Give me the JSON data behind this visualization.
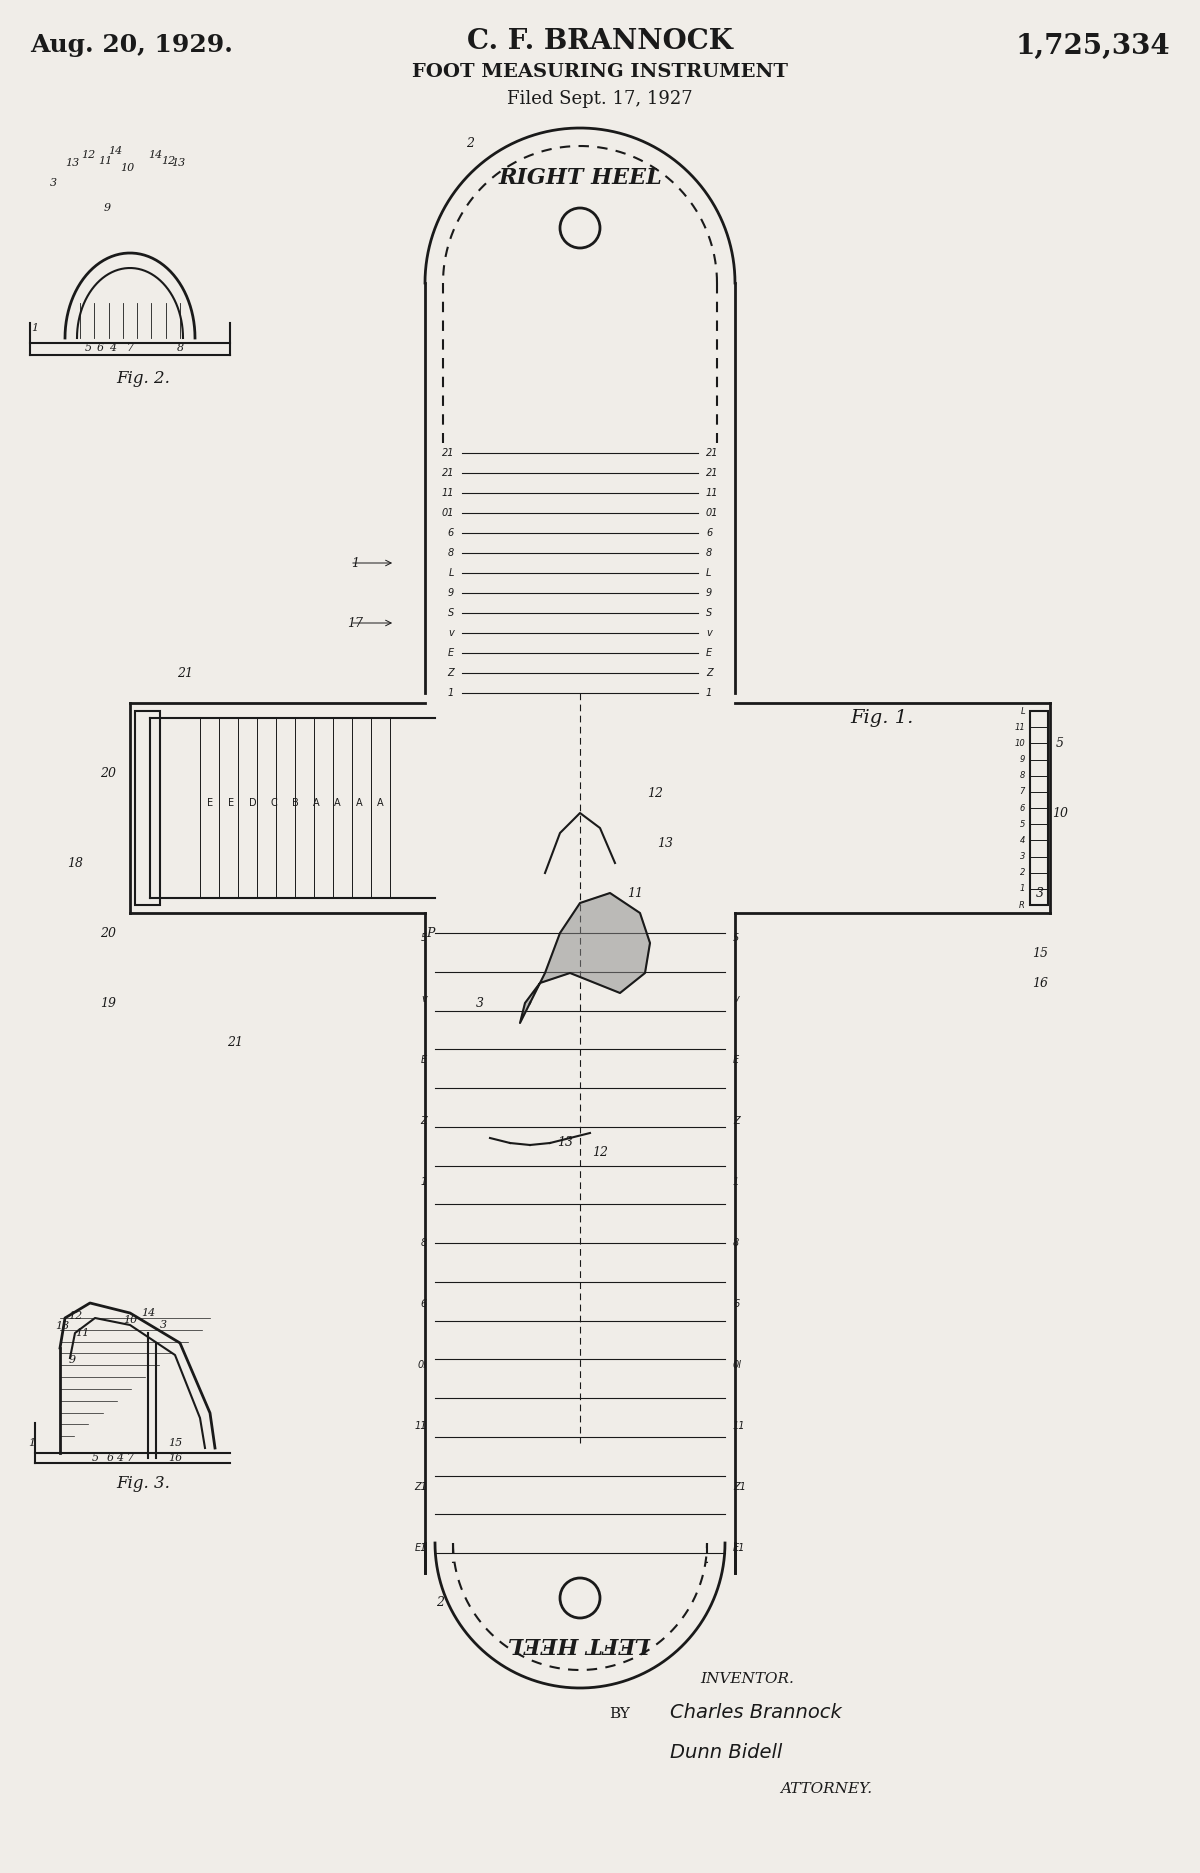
{
  "bg_color": "#f0ede8",
  "title_line1": "C. F. BRANNOCK",
  "title_line2": "FOOT MEASURING INSTRUMENT",
  "title_line3": "Filed Sept. 17, 1927",
  "date": "Aug. 20, 1929.",
  "patent_no": "1,725,334",
  "inventor_label": "INVENTOR.",
  "inventor_sig": "Charles Brannock",
  "by_label": "BY",
  "attorney_sig": "Dunn Bidell",
  "attorney_label": "ATTORNEY.",
  "fig1_label": "Fig. 1.",
  "fig2_label": "Fig. 2.",
  "fig3_label": "Fig. 3.",
  "right_heel_text": "RIGHT HEEL",
  "left_heel_text": "LEFT HEEL"
}
